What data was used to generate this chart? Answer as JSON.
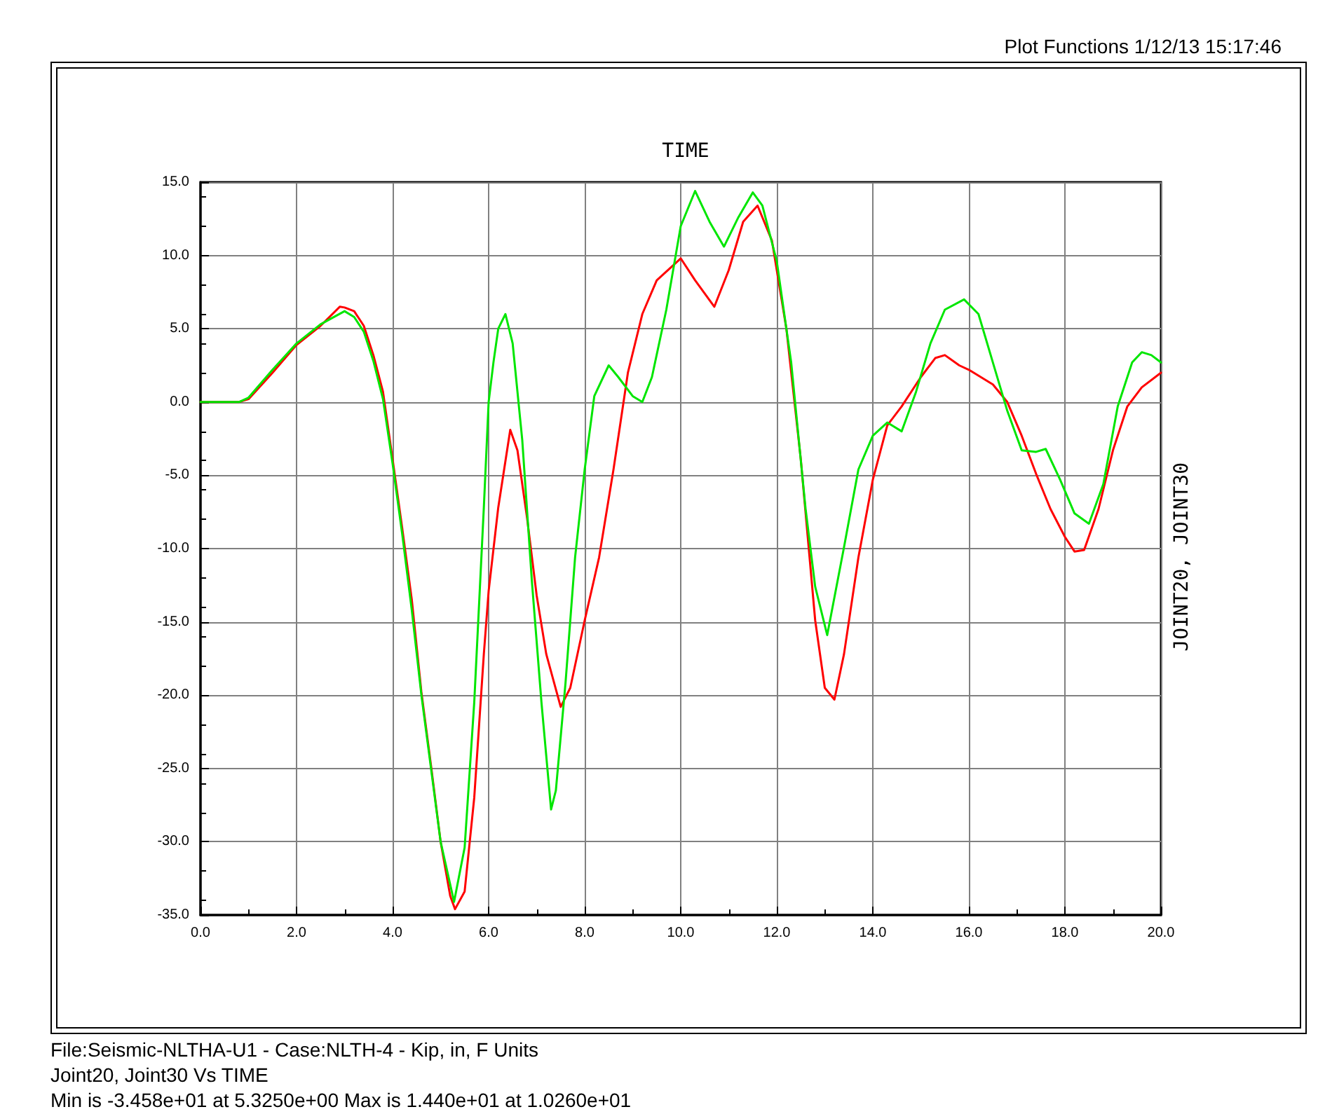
{
  "chart_data": {
    "type": "line",
    "xlabel": "TIME",
    "ylabel": "JOINT20, JOINT30",
    "annotations": [
      "Plot Functions  1/12/13 15:17:46",
      "File:Seismic-NLTHA-U1 - Case:NLTH-4 - Kip, in, F Units",
      "Joint20, Joint30  Vs  TIME",
      "Min is -3.458e+01 at 5.3250e+00  Max is 1.440e+01 at 1.0260e+01"
    ],
    "xlim": [
      0,
      20
    ],
    "ylim": [
      -35,
      15
    ],
    "xticks": [
      {
        "value": 0,
        "label": "0.0"
      },
      {
        "value": 2,
        "label": "2.0"
      },
      {
        "value": 4,
        "label": "4.0"
      },
      {
        "value": 6,
        "label": "6.0"
      },
      {
        "value": 8,
        "label": "8.0"
      },
      {
        "value": 10,
        "label": "10.0"
      },
      {
        "value": 12,
        "label": "12.0"
      },
      {
        "value": 14,
        "label": "14.0"
      },
      {
        "value": 16,
        "label": "16.0"
      },
      {
        "value": 18,
        "label": "18.0"
      },
      {
        "value": 20,
        "label": "20.0"
      }
    ],
    "yticks": [
      {
        "value": -35,
        "label": "-35.0"
      },
      {
        "value": -30,
        "label": "-30.0"
      },
      {
        "value": -25,
        "label": "-25.0"
      },
      {
        "value": -20,
        "label": "-20.0"
      },
      {
        "value": -15,
        "label": "-15.0"
      },
      {
        "value": -10,
        "label": "-10.0"
      },
      {
        "value": -5,
        "label": "-5.0"
      },
      {
        "value": 0,
        "label": "0.0"
      },
      {
        "value": 5,
        "label": "5.0"
      },
      {
        "value": 10,
        "label": "10.0"
      },
      {
        "value": 15,
        "label": "15.0"
      }
    ],
    "grid": true,
    "marker": "none",
    "line_style": "solid",
    "series": [
      {
        "color": "#ff0000",
        "x": [
          0,
          0.8,
          1.0,
          1.5,
          2.0,
          2.5,
          2.9,
          3.0,
          3.2,
          3.4,
          3.6,
          3.8,
          4.0,
          4.2,
          4.4,
          4.6,
          4.8,
          5.0,
          5.2,
          5.3,
          5.5,
          5.7,
          5.9,
          6.0,
          6.2,
          6.45,
          6.6,
          6.8,
          7.0,
          7.2,
          7.5,
          7.7,
          8.0,
          8.3,
          8.6,
          8.9,
          9.2,
          9.5,
          10.0,
          10.3,
          10.7,
          11.0,
          11.3,
          11.6,
          11.9,
          12.2,
          12.5,
          12.8,
          13.0,
          13.2,
          13.4,
          13.7,
          14.0,
          14.3,
          14.6,
          15.0,
          15.3,
          15.5,
          15.8,
          16.0,
          16.5,
          16.8,
          17.1,
          17.4,
          17.7,
          18.0,
          18.2,
          18.4,
          18.7,
          19.0,
          19.3,
          19.6,
          20.0
        ],
        "values": [
          0,
          0,
          0.2,
          2.0,
          3.9,
          5.2,
          6.5,
          6.45,
          6.2,
          5.2,
          3.2,
          0.7,
          -3.9,
          -8.6,
          -13.5,
          -19.8,
          -24.8,
          -30,
          -33.7,
          -34.6,
          -33.4,
          -27,
          -17.2,
          -12.9,
          -7.2,
          -1.9,
          -3.3,
          -7.9,
          -13.2,
          -17.2,
          -20.8,
          -19.5,
          -14.9,
          -10.6,
          -4.6,
          2.0,
          6.0,
          8.3,
          9.8,
          8.3,
          6.5,
          9.0,
          12.3,
          13.4,
          11.0,
          5.0,
          -3.9,
          -14.9,
          -19.5,
          -20.3,
          -17.2,
          -10.6,
          -5.3,
          -1.6,
          -0.3,
          1.7,
          3.0,
          3.2,
          2.5,
          2.2,
          1.2,
          0,
          -2.3,
          -4.9,
          -7.3,
          -9.2,
          -10.2,
          -10.1,
          -7.3,
          -3.3,
          -0.3,
          1.0,
          2.0
        ]
      },
      {
        "color": "#00e600",
        "x": [
          0,
          0.8,
          1.0,
          1.5,
          2.0,
          2.5,
          3.0,
          3.2,
          3.4,
          3.6,
          3.8,
          4.0,
          4.2,
          4.4,
          4.6,
          4.8,
          5.0,
          5.28,
          5.5,
          5.7,
          5.9,
          6.0,
          6.1,
          6.2,
          6.35,
          6.5,
          6.7,
          6.9,
          7.1,
          7.3,
          7.4,
          7.6,
          7.8,
          8.0,
          8.2,
          8.5,
          8.7,
          9.0,
          9.2,
          9.4,
          9.7,
          10.0,
          10.3,
          10.6,
          10.9,
          11.2,
          11.5,
          11.7,
          12.0,
          12.3,
          12.6,
          12.8,
          13.05,
          13.4,
          13.7,
          14.0,
          14.3,
          14.6,
          14.9,
          15.2,
          15.5,
          15.9,
          16.2,
          16.5,
          16.8,
          17.1,
          17.4,
          17.6,
          17.9,
          18.2,
          18.5,
          18.8,
          19.1,
          19.4,
          19.6,
          19.8,
          20.0
        ],
        "values": [
          0,
          0,
          0.3,
          2.2,
          4.0,
          5.3,
          6.2,
          5.8,
          4.8,
          2.8,
          0.2,
          -4.2,
          -9.0,
          -14.2,
          -20.0,
          -25.0,
          -30.0,
          -34.1,
          -30.4,
          -20.5,
          -7.2,
          0,
          2.7,
          5.0,
          6.0,
          4.0,
          -2.6,
          -12.2,
          -20.5,
          -27.8,
          -26.5,
          -19.2,
          -10.6,
          -4.6,
          0.4,
          2.5,
          1.7,
          0.4,
          0,
          1.7,
          6.3,
          12.0,
          14.4,
          12.3,
          10.6,
          12.6,
          14.3,
          13.4,
          9.6,
          2.7,
          -7.3,
          -12.6,
          -15.9,
          -9.9,
          -4.6,
          -2.3,
          -1.4,
          -2.0,
          0.7,
          4.0,
          6.3,
          7.0,
          6.0,
          2.7,
          -0.6,
          -3.3,
          -3.4,
          -3.2,
          -5.3,
          -7.6,
          -8.3,
          -5.6,
          -0.3,
          2.7,
          3.4,
          3.2,
          2.7
        ]
      }
    ]
  }
}
